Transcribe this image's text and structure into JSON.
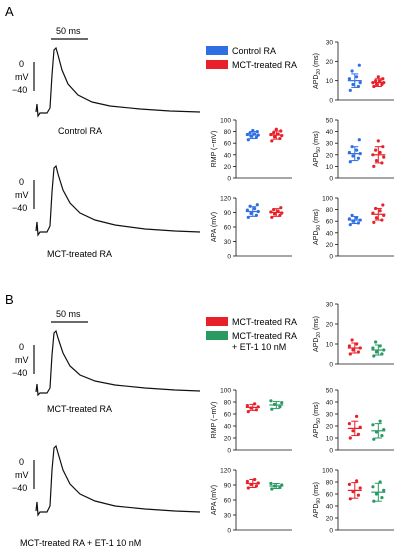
{
  "panel_labels": [
    "A",
    "B"
  ],
  "colors": {
    "control": "#2f6fe4",
    "mct": "#e8202a",
    "et1": "#2a9a63",
    "trace": "#111111"
  },
  "scale_bar": {
    "time_label": "50 ms",
    "voltage_ticks": [
      "0",
      "mV",
      "−40"
    ]
  },
  "legend_A": [
    {
      "label": "Control RA",
      "color": "#2f6fe4"
    },
    {
      "label": "MCT-treated RA",
      "color": "#e8202a"
    }
  ],
  "legend_B": [
    {
      "label": "MCT-treated RA",
      "color": "#e8202a"
    },
    {
      "label": "MCT-treated RA",
      "color": "#2a9a63"
    },
    {
      "label": "+ ET-1 10 nM",
      "color": ""
    }
  ],
  "trace_labels": {
    "A_top": "Control RA",
    "A_bottom": "MCT-treated RA",
    "B_top": "MCT-treated RA",
    "B_bottom": "MCT-treated RA + ET-1 10 nM"
  },
  "chart_data": [
    {
      "id": "A_APD20",
      "panel": "A",
      "type": "scatter",
      "ylabel": "APD20 (ms)",
      "ylim": [
        0,
        30
      ],
      "yticks": [
        0,
        10,
        20,
        30
      ],
      "groups": [
        {
          "name": "Control RA",
          "color": "#2f6fe4",
          "mean": 10,
          "sd": 3.5,
          "points": [
            5,
            7,
            8,
            9,
            11,
            12,
            15,
            18
          ]
        },
        {
          "name": "MCT-treated RA",
          "color": "#e8202a",
          "mean": 9,
          "sd": 2,
          "points": [
            7,
            8,
            8,
            9,
            9,
            10,
            10,
            11,
            12
          ]
        }
      ]
    },
    {
      "id": "A_RMP",
      "panel": "A",
      "type": "scatter",
      "ylabel": "RMP (−mV)",
      "ylim": [
        0,
        100
      ],
      "yticks": [
        0,
        20,
        40,
        60,
        80,
        100
      ],
      "groups": [
        {
          "name": "Control RA",
          "color": "#2f6fe4",
          "mean": 74,
          "sd": 6,
          "points": [
            66,
            70,
            72,
            74,
            75,
            76,
            78,
            80,
            82
          ]
        },
        {
          "name": "MCT-treated RA",
          "color": "#e8202a",
          "mean": 74,
          "sd": 7,
          "points": [
            64,
            68,
            71,
            73,
            75,
            76,
            78,
            81,
            84
          ]
        }
      ]
    },
    {
      "id": "A_APD50",
      "panel": "A",
      "type": "scatter",
      "ylabel": "APD50 (ms)",
      "ylim": [
        0,
        50
      ],
      "yticks": [
        0,
        10,
        20,
        30,
        40,
        50
      ],
      "groups": [
        {
          "name": "Control RA",
          "color": "#2f6fe4",
          "mean": 21,
          "sd": 6,
          "points": [
            14,
            17,
            19,
            21,
            22,
            24,
            27,
            33
          ]
        },
        {
          "name": "MCT-treated RA",
          "color": "#e8202a",
          "mean": 20,
          "sd": 7,
          "points": [
            10,
            13,
            15,
            18,
            20,
            22,
            24,
            27,
            32
          ]
        }
      ]
    },
    {
      "id": "A_APA",
      "panel": "A",
      "type": "scatter",
      "ylabel": "APA (mV)",
      "ylim": [
        0,
        120
      ],
      "yticks": [
        0,
        30,
        60,
        90,
        120
      ],
      "groups": [
        {
          "name": "Control RA",
          "color": "#2f6fe4",
          "mean": 92,
          "sd": 10,
          "points": [
            80,
            84,
            88,
            92,
            95,
            98,
            103,
            106
          ]
        },
        {
          "name": "MCT-treated RA",
          "color": "#e8202a",
          "mean": 90,
          "sd": 8,
          "points": [
            80,
            84,
            87,
            89,
            91,
            93,
            96,
            100
          ]
        }
      ]
    },
    {
      "id": "A_APD90",
      "panel": "A",
      "type": "scatter",
      "ylabel": "APD90 (ms)",
      "ylim": [
        0,
        100
      ],
      "yticks": [
        0,
        20,
        40,
        60,
        80,
        100
      ],
      "groups": [
        {
          "name": "Control RA",
          "color": "#2f6fe4",
          "mean": 62,
          "sd": 6,
          "points": [
            54,
            57,
            60,
            62,
            64,
            66,
            70
          ]
        },
        {
          "name": "MCT-treated RA",
          "color": "#e8202a",
          "mean": 72,
          "sd": 10,
          "points": [
            58,
            62,
            66,
            70,
            74,
            78,
            82,
            88
          ]
        }
      ]
    },
    {
      "id": "B_APD20",
      "panel": "B",
      "type": "scatter",
      "ylabel": "APD20 (ms)",
      "ylim": [
        0,
        30
      ],
      "yticks": [
        0,
        10,
        20,
        30
      ],
      "groups": [
        {
          "name": "MCT-treated RA",
          "color": "#e8202a",
          "mean": 8,
          "sd": 2.5,
          "points": [
            5,
            6,
            7,
            8,
            9,
            10,
            12
          ]
        },
        {
          "name": "MCT-treated RA + ET-1 10 nM",
          "color": "#2a9a63",
          "mean": 7,
          "sd": 2.5,
          "points": [
            4,
            5,
            6,
            7,
            8,
            9,
            11
          ]
        }
      ]
    },
    {
      "id": "B_RMP",
      "panel": "B",
      "type": "scatter",
      "ylabel": "RMP (−mV)",
      "ylim": [
        0,
        100
      ],
      "yticks": [
        0,
        20,
        40,
        60,
        80,
        100
      ],
      "groups": [
        {
          "name": "MCT-treated RA",
          "color": "#e8202a",
          "mean": 71,
          "sd": 5,
          "points": [
            64,
            67,
            70,
            72,
            74,
            77
          ]
        },
        {
          "name": "MCT-treated RA + ET-1 10 nM",
          "color": "#2a9a63",
          "mean": 75,
          "sd": 6,
          "points": [
            68,
            72,
            76,
            79,
            82
          ]
        }
      ]
    },
    {
      "id": "B_APD50",
      "panel": "B",
      "type": "scatter",
      "ylabel": "APD50 (ms)",
      "ylim": [
        0,
        50
      ],
      "yticks": [
        0,
        10,
        20,
        30,
        40,
        50
      ],
      "groups": [
        {
          "name": "MCT-treated RA",
          "color": "#e8202a",
          "mean": 18,
          "sd": 6,
          "points": [
            10,
            13,
            16,
            19,
            22,
            28
          ]
        },
        {
          "name": "MCT-treated RA + ET-1 10 nM",
          "color": "#2a9a63",
          "mean": 16,
          "sd": 6,
          "points": [
            9,
            12,
            15,
            17,
            21,
            24
          ]
        }
      ]
    },
    {
      "id": "B_APA",
      "panel": "B",
      "type": "scatter",
      "ylabel": "APA (mV)",
      "ylim": [
        0,
        120
      ],
      "yticks": [
        0,
        30,
        60,
        90,
        120
      ],
      "groups": [
        {
          "name": "MCT-treated RA",
          "color": "#e8202a",
          "mean": 93,
          "sd": 8,
          "points": [
            84,
            88,
            91,
            94,
            97,
            101
          ]
        },
        {
          "name": "MCT-treated RA + ET-1 10 nM",
          "color": "#2a9a63",
          "mean": 88,
          "sd": 5,
          "points": [
            82,
            85,
            88,
            90,
            93
          ]
        }
      ]
    },
    {
      "id": "B_APD90",
      "panel": "B",
      "type": "scatter",
      "ylabel": "APD90 (ms)",
      "ylim": [
        0,
        100
      ],
      "yticks": [
        0,
        20,
        40,
        60,
        80,
        100
      ],
      "groups": [
        {
          "name": "MCT-treated RA",
          "color": "#e8202a",
          "mean": 66,
          "sd": 13,
          "points": [
            52,
            58,
            64,
            70,
            76,
            82
          ]
        },
        {
          "name": "MCT-treated RA + ET-1 10 nM",
          "color": "#2a9a63",
          "mean": 63,
          "sd": 15,
          "points": [
            48,
            54,
            60,
            66,
            72,
            80
          ]
        }
      ]
    }
  ]
}
